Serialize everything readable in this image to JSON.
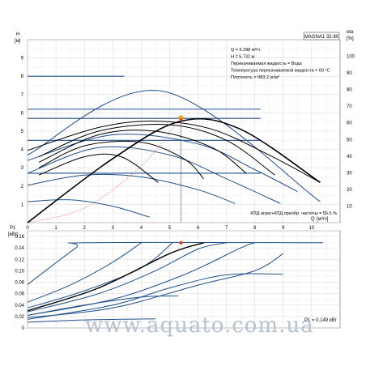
{
  "chart_data": [
    {
      "type": "line",
      "title": "MAGNA1 32-80",
      "ylabel": "H",
      "yunit": "[м]",
      "y2label": "eta",
      "y2unit": "[%]",
      "xlabel": "Q",
      "xunit": "[м³/ч]",
      "xlim": [
        0,
        11
      ],
      "ylim": [
        0,
        10
      ],
      "y2lim": [
        0,
        110
      ],
      "x_ticks": [
        "0",
        "1",
        "2",
        "3",
        "4",
        "5",
        "6",
        "7",
        "8",
        "9",
        "10"
      ],
      "y_ticks": [
        "1",
        "2",
        "3",
        "4",
        "5",
        "6",
        "7",
        "8",
        "9"
      ],
      "y2_ticks": [
        "10",
        "20",
        "30",
        "40",
        "50",
        "60",
        "70",
        "80",
        "90",
        "100"
      ],
      "grid": true,
      "info_lines": [
        "Q = 5.398 м³/ч",
        "H = 5.732 м",
        "Перекачиваемая жидкость = Вода",
        "Температура перекачиваемой жидкости = 60 °C",
        "Плотность = 983.2 кг/м³"
      ],
      "efficiency_note": "КПД агрег+КПД преобр. частоты = 55.5 %",
      "duty_point": {
        "x": 5.398,
        "y": 5.732
      },
      "series": [
        {
          "kind": "proportional-pressure",
          "color": "#1f4f8b",
          "points": [
            [
              0,
              3.7
            ],
            [
              4.7,
              7.2
            ],
            [
              10.3,
              1.15
            ]
          ]
        },
        {
          "kind": "constant-pressure",
          "color": "#1f4f8b",
          "values_y": [
            8.0,
            6.2,
            5.7,
            4.5,
            2.7
          ]
        },
        {
          "kind": "pump-curve",
          "color": "#1f4f8b",
          "points": [
            [
              0,
              1.15
            ],
            [
              1.5,
              1.25
            ],
            [
              3,
              0.9
            ],
            [
              4.3,
              0.3
            ]
          ]
        },
        {
          "kind": "pump-curve",
          "color": "#1f4f8b",
          "points": [
            [
              0,
              2.05
            ],
            [
              2,
              2.6
            ],
            [
              4,
              2.5
            ],
            [
              6,
              1.8
            ],
            [
              7.3,
              1.05
            ]
          ]
        },
        {
          "kind": "pump-curve",
          "color": "#1f4f8b",
          "points": [
            [
              0,
              2.7
            ],
            [
              2.5,
              4.1
            ],
            [
              5,
              3.7
            ],
            [
              7,
              2.4
            ],
            [
              8.9,
              1.05
            ]
          ]
        },
        {
          "kind": "pump-curve",
          "color": "#1f4f8b",
          "points": [
            [
              0,
              3.4
            ],
            [
              3,
              4.8
            ],
            [
              6,
              4.3
            ],
            [
              8,
              2.9
            ],
            [
              9.5,
              1.7
            ]
          ]
        },
        {
          "kind": "pump-curve",
          "color": "#000000",
          "points": [
            [
              0,
              3.95
            ],
            [
              2.5,
              5.2
            ],
            [
              4.5,
              5.55
            ],
            [
              6.5,
              5.1
            ],
            [
              8.5,
              3.7
            ],
            [
              10.3,
              2.2
            ]
          ]
        },
        {
          "kind": "pump-curve",
          "color": "#000000",
          "points": [
            [
              0.4,
              3.6
            ],
            [
              2.5,
              5.0
            ],
            [
              5,
              5.35
            ],
            [
              7,
              4.5
            ],
            [
              8.7,
              2.6
            ]
          ]
        },
        {
          "kind": "pump-curve",
          "color": "#000000",
          "points": [
            [
              0.4,
              3.3
            ],
            [
              2.5,
              4.8
            ],
            [
              4.5,
              5.0
            ],
            [
              6.5,
              4.1
            ],
            [
              7.7,
              2.7
            ]
          ]
        },
        {
          "kind": "pump-curve",
          "color": "#000000",
          "points": [
            [
              0.4,
              3.0
            ],
            [
              2,
              4.2
            ],
            [
              4,
              4.4
            ],
            [
              5.5,
              3.5
            ],
            [
              6.2,
              2.4
            ]
          ]
        },
        {
          "kind": "pump-curve",
          "color": "#000000",
          "points": [
            [
              0.4,
              2.6
            ],
            [
              2,
              3.6
            ],
            [
              3.3,
              3.6
            ],
            [
              4.6,
              2.2
            ]
          ]
        },
        {
          "kind": "system-curve",
          "color": "#ff7070",
          "points": [
            [
              0,
              0
            ],
            [
              2,
              0.8
            ],
            [
              4,
              3.1
            ],
            [
              5.4,
              5.73
            ]
          ]
        },
        {
          "kind": "efficiency",
          "color": "#000000",
          "points": [
            [
              0,
              0
            ],
            [
              3,
              3.5
            ],
            [
              5.4,
              5.55
            ],
            [
              7.5,
              5.1
            ],
            [
              10.3,
              2.2
            ]
          ]
        }
      ]
    },
    {
      "type": "line",
      "ylabel": "P1",
      "yunit": "[кВт]",
      "ylim": [
        0,
        0.17
      ],
      "y_ticks": [
        "0",
        "0.02",
        "0.04",
        "0.06",
        "0.08",
        "0.10",
        "0.12",
        "0.14",
        "0.16"
      ],
      "grid": true,
      "power_note": "P1 = 0.149 кВт",
      "duty_point": {
        "x": 5.398,
        "y": 0.149
      },
      "series": [
        {
          "color": "#1f4f8b",
          "points": [
            [
              0,
              0.076
            ],
            [
              1.7,
              0.14
            ],
            [
              2.1,
              0.149
            ],
            [
              10.4,
              0.149
            ]
          ]
        },
        {
          "color": "#1f4f8b",
          "points": [
            [
              0,
              0.045
            ],
            [
              1.5,
              0.075
            ],
            [
              3,
              0.115
            ],
            [
              4,
              0.149
            ]
          ]
        },
        {
          "color": "#1f4f8b",
          "points": [
            [
              0,
              0.035
            ],
            [
              2,
              0.065
            ],
            [
              4,
              0.105
            ],
            [
              5.1,
              0.149
            ]
          ]
        },
        {
          "color": "#1f4f8b",
          "points": [
            [
              0,
              0.028
            ],
            [
              2.5,
              0.06
            ],
            [
              4.5,
              0.1
            ],
            [
              6,
              0.138
            ],
            [
              7,
              0.149
            ]
          ]
        },
        {
          "color": "#1f4f8b",
          "points": [
            [
              0,
              0.022
            ],
            [
              3,
              0.05
            ],
            [
              5.5,
              0.093
            ],
            [
              7.5,
              0.14
            ],
            [
              8,
              0.149
            ]
          ]
        },
        {
          "color": "#1f4f8b",
          "points": [
            [
              0,
              0.018
            ],
            [
              3,
              0.035
            ],
            [
              6,
              0.075
            ],
            [
              8,
              0.1
            ],
            [
              9,
              0.13
            ]
          ]
        },
        {
          "color": "#1f4f8b",
          "points": [
            [
              0,
              0.015
            ],
            [
              3,
              0.04
            ],
            [
              5,
              0.07
            ],
            [
              7,
              0.093
            ],
            [
              9,
              0.094
            ]
          ]
        },
        {
          "color": "#1f4f8b",
          "points": [
            [
              0,
              0.022
            ],
            [
              2,
              0.04
            ],
            [
              4,
              0.054
            ],
            [
              5.3,
              0.056
            ]
          ]
        },
        {
          "color": "#1f4f8b",
          "points": [
            [
              0,
              0.01
            ],
            [
              2,
              0.014
            ],
            [
              4.5,
              0.016
            ]
          ]
        },
        {
          "color": "#000000",
          "points": [
            [
              0,
              0.03
            ],
            [
              2.5,
              0.07
            ],
            [
              5,
              0.13
            ],
            [
              6.2,
              0.149
            ]
          ]
        }
      ]
    }
  ],
  "watermark": "www.aquato.com.ua"
}
